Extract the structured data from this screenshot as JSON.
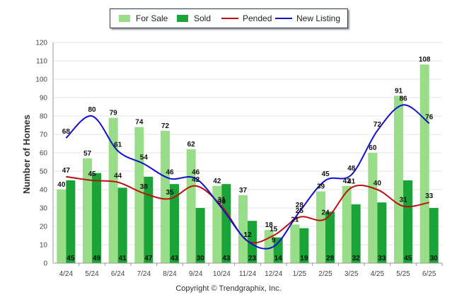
{
  "chart_data": {
    "type": "bar",
    "ylabel": "Number of Homes",
    "xlabel": "",
    "ylim": [
      0,
      120
    ],
    "yticks": [
      0,
      10,
      20,
      30,
      40,
      50,
      60,
      70,
      80,
      90,
      100,
      110,
      120
    ],
    "categories": [
      "4/24",
      "5/24",
      "6/24",
      "7/24",
      "8/24",
      "9/24",
      "10/24",
      "11/24",
      "12/24",
      "1/25",
      "2/25",
      "3/25",
      "4/25",
      "5/25",
      "6/25"
    ],
    "series": [
      {
        "name": "For Sale",
        "kind": "bar",
        "color": "#99dd88",
        "values": [
          40,
          57,
          79,
          74,
          72,
          62,
          42,
          37,
          18,
          21,
          39,
          42,
          60,
          91,
          108
        ]
      },
      {
        "name": "Sold",
        "kind": "bar",
        "color": "#1aa336",
        "values": [
          45,
          49,
          41,
          47,
          43,
          30,
          43,
          23,
          14,
          19,
          28,
          32,
          33,
          45,
          30
        ]
      },
      {
        "name": "Pended",
        "kind": "line",
        "color": "#bb1111",
        "values": [
          47,
          45,
          44,
          38,
          35,
          42,
          31,
          12,
          15,
          25,
          24,
          41,
          40,
          31,
          33
        ]
      },
      {
        "name": "New Listing",
        "kind": "line",
        "color": "#1111cc",
        "values": [
          68,
          80,
          61,
          54,
          46,
          46,
          30,
          12,
          9,
          28,
          45,
          48,
          72,
          86,
          76
        ]
      }
    ],
    "grid": true,
    "legend_position": "top-center"
  },
  "footer": {
    "copyright": "Copyright © Trendgraphix, Inc."
  }
}
